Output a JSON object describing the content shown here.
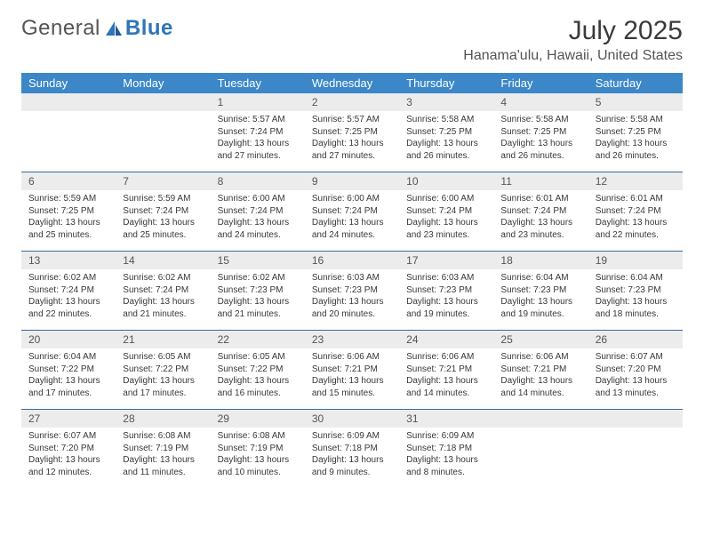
{
  "logo": {
    "text1": "General",
    "text2": "Blue"
  },
  "title": "July 2025",
  "location": "Hanama'ulu, Hawaii, United States",
  "colors": {
    "header_bg": "#3b87c8",
    "header_text": "#ffffff",
    "daynum_bg": "#ececec",
    "week_border": "#3b6a95",
    "text": "#383838"
  },
  "dow": [
    "Sunday",
    "Monday",
    "Tuesday",
    "Wednesday",
    "Thursday",
    "Friday",
    "Saturday"
  ],
  "weeks": [
    [
      null,
      null,
      {
        "n": "1",
        "sr": "Sunrise: 5:57 AM",
        "ss": "Sunset: 7:24 PM",
        "dl": "Daylight: 13 hours and 27 minutes."
      },
      {
        "n": "2",
        "sr": "Sunrise: 5:57 AM",
        "ss": "Sunset: 7:25 PM",
        "dl": "Daylight: 13 hours and 27 minutes."
      },
      {
        "n": "3",
        "sr": "Sunrise: 5:58 AM",
        "ss": "Sunset: 7:25 PM",
        "dl": "Daylight: 13 hours and 26 minutes."
      },
      {
        "n": "4",
        "sr": "Sunrise: 5:58 AM",
        "ss": "Sunset: 7:25 PM",
        "dl": "Daylight: 13 hours and 26 minutes."
      },
      {
        "n": "5",
        "sr": "Sunrise: 5:58 AM",
        "ss": "Sunset: 7:25 PM",
        "dl": "Daylight: 13 hours and 26 minutes."
      }
    ],
    [
      {
        "n": "6",
        "sr": "Sunrise: 5:59 AM",
        "ss": "Sunset: 7:25 PM",
        "dl": "Daylight: 13 hours and 25 minutes."
      },
      {
        "n": "7",
        "sr": "Sunrise: 5:59 AM",
        "ss": "Sunset: 7:24 PM",
        "dl": "Daylight: 13 hours and 25 minutes."
      },
      {
        "n": "8",
        "sr": "Sunrise: 6:00 AM",
        "ss": "Sunset: 7:24 PM",
        "dl": "Daylight: 13 hours and 24 minutes."
      },
      {
        "n": "9",
        "sr": "Sunrise: 6:00 AM",
        "ss": "Sunset: 7:24 PM",
        "dl": "Daylight: 13 hours and 24 minutes."
      },
      {
        "n": "10",
        "sr": "Sunrise: 6:00 AM",
        "ss": "Sunset: 7:24 PM",
        "dl": "Daylight: 13 hours and 23 minutes."
      },
      {
        "n": "11",
        "sr": "Sunrise: 6:01 AM",
        "ss": "Sunset: 7:24 PM",
        "dl": "Daylight: 13 hours and 23 minutes."
      },
      {
        "n": "12",
        "sr": "Sunrise: 6:01 AM",
        "ss": "Sunset: 7:24 PM",
        "dl": "Daylight: 13 hours and 22 minutes."
      }
    ],
    [
      {
        "n": "13",
        "sr": "Sunrise: 6:02 AM",
        "ss": "Sunset: 7:24 PM",
        "dl": "Daylight: 13 hours and 22 minutes."
      },
      {
        "n": "14",
        "sr": "Sunrise: 6:02 AM",
        "ss": "Sunset: 7:24 PM",
        "dl": "Daylight: 13 hours and 21 minutes."
      },
      {
        "n": "15",
        "sr": "Sunrise: 6:02 AM",
        "ss": "Sunset: 7:23 PM",
        "dl": "Daylight: 13 hours and 21 minutes."
      },
      {
        "n": "16",
        "sr": "Sunrise: 6:03 AM",
        "ss": "Sunset: 7:23 PM",
        "dl": "Daylight: 13 hours and 20 minutes."
      },
      {
        "n": "17",
        "sr": "Sunrise: 6:03 AM",
        "ss": "Sunset: 7:23 PM",
        "dl": "Daylight: 13 hours and 19 minutes."
      },
      {
        "n": "18",
        "sr": "Sunrise: 6:04 AM",
        "ss": "Sunset: 7:23 PM",
        "dl": "Daylight: 13 hours and 19 minutes."
      },
      {
        "n": "19",
        "sr": "Sunrise: 6:04 AM",
        "ss": "Sunset: 7:23 PM",
        "dl": "Daylight: 13 hours and 18 minutes."
      }
    ],
    [
      {
        "n": "20",
        "sr": "Sunrise: 6:04 AM",
        "ss": "Sunset: 7:22 PM",
        "dl": "Daylight: 13 hours and 17 minutes."
      },
      {
        "n": "21",
        "sr": "Sunrise: 6:05 AM",
        "ss": "Sunset: 7:22 PM",
        "dl": "Daylight: 13 hours and 17 minutes."
      },
      {
        "n": "22",
        "sr": "Sunrise: 6:05 AM",
        "ss": "Sunset: 7:22 PM",
        "dl": "Daylight: 13 hours and 16 minutes."
      },
      {
        "n": "23",
        "sr": "Sunrise: 6:06 AM",
        "ss": "Sunset: 7:21 PM",
        "dl": "Daylight: 13 hours and 15 minutes."
      },
      {
        "n": "24",
        "sr": "Sunrise: 6:06 AM",
        "ss": "Sunset: 7:21 PM",
        "dl": "Daylight: 13 hours and 14 minutes."
      },
      {
        "n": "25",
        "sr": "Sunrise: 6:06 AM",
        "ss": "Sunset: 7:21 PM",
        "dl": "Daylight: 13 hours and 14 minutes."
      },
      {
        "n": "26",
        "sr": "Sunrise: 6:07 AM",
        "ss": "Sunset: 7:20 PM",
        "dl": "Daylight: 13 hours and 13 minutes."
      }
    ],
    [
      {
        "n": "27",
        "sr": "Sunrise: 6:07 AM",
        "ss": "Sunset: 7:20 PM",
        "dl": "Daylight: 13 hours and 12 minutes."
      },
      {
        "n": "28",
        "sr": "Sunrise: 6:08 AM",
        "ss": "Sunset: 7:19 PM",
        "dl": "Daylight: 13 hours and 11 minutes."
      },
      {
        "n": "29",
        "sr": "Sunrise: 6:08 AM",
        "ss": "Sunset: 7:19 PM",
        "dl": "Daylight: 13 hours and 10 minutes."
      },
      {
        "n": "30",
        "sr": "Sunrise: 6:09 AM",
        "ss": "Sunset: 7:18 PM",
        "dl": "Daylight: 13 hours and 9 minutes."
      },
      {
        "n": "31",
        "sr": "Sunrise: 6:09 AM",
        "ss": "Sunset: 7:18 PM",
        "dl": "Daylight: 13 hours and 8 minutes."
      },
      null,
      null
    ]
  ]
}
